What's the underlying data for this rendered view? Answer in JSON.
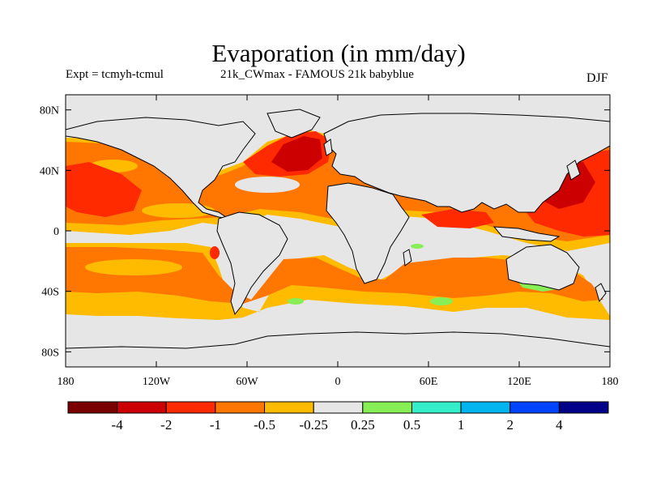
{
  "title": "Evaporation (in mm/day)",
  "subtitle_left": "Expt = tcmyh-tcmul",
  "subtitle_center": "21k_CWmax - FAMOUS 21k babyblue",
  "subtitle_right": "DJF",
  "map": {
    "projection": "cylindrical equidistant",
    "lon_range": [
      -180,
      180
    ],
    "lat_range": [
      -90,
      90
    ],
    "background_color": "#e6e6e6",
    "lat_ticks": [
      {
        "lat": 80,
        "label": "80N"
      },
      {
        "lat": 40,
        "label": "40N"
      },
      {
        "lat": 0,
        "label": "0"
      },
      {
        "lat": -40,
        "label": "40S"
      },
      {
        "lat": -80,
        "label": "80S"
      }
    ],
    "lon_ticks": [
      {
        "lon": -180,
        "label": "180"
      },
      {
        "lon": -120,
        "label": "120W"
      },
      {
        "lon": -60,
        "label": "60W"
      },
      {
        "lon": 0,
        "label": "0"
      },
      {
        "lon": 60,
        "label": "60E"
      },
      {
        "lon": 120,
        "label": "120E"
      },
      {
        "lon": 180,
        "label": "180"
      }
    ]
  },
  "colorbar": {
    "colors": [
      "#7a0000",
      "#cc0000",
      "#ff2a00",
      "#ff7700",
      "#ffbb00",
      "#e6e6e6",
      "#88ee55",
      "#33eec8",
      "#00b4f0",
      "#0044ff",
      "#000088"
    ],
    "labels": [
      "-4",
      "-2",
      "-1",
      "-0.5",
      "-0.25",
      "0.25",
      "0.5",
      "1",
      "2",
      "4"
    ]
  },
  "field": {
    "levels_note_colors": {
      "deep_red": "#cc0000",
      "red": "#ff2a00",
      "orange": "#ff7700",
      "yellow_orange": "#ffbb00",
      "green": "#88ee55",
      "cyan": "#33eec8",
      "blue": "#00b4f0"
    }
  }
}
